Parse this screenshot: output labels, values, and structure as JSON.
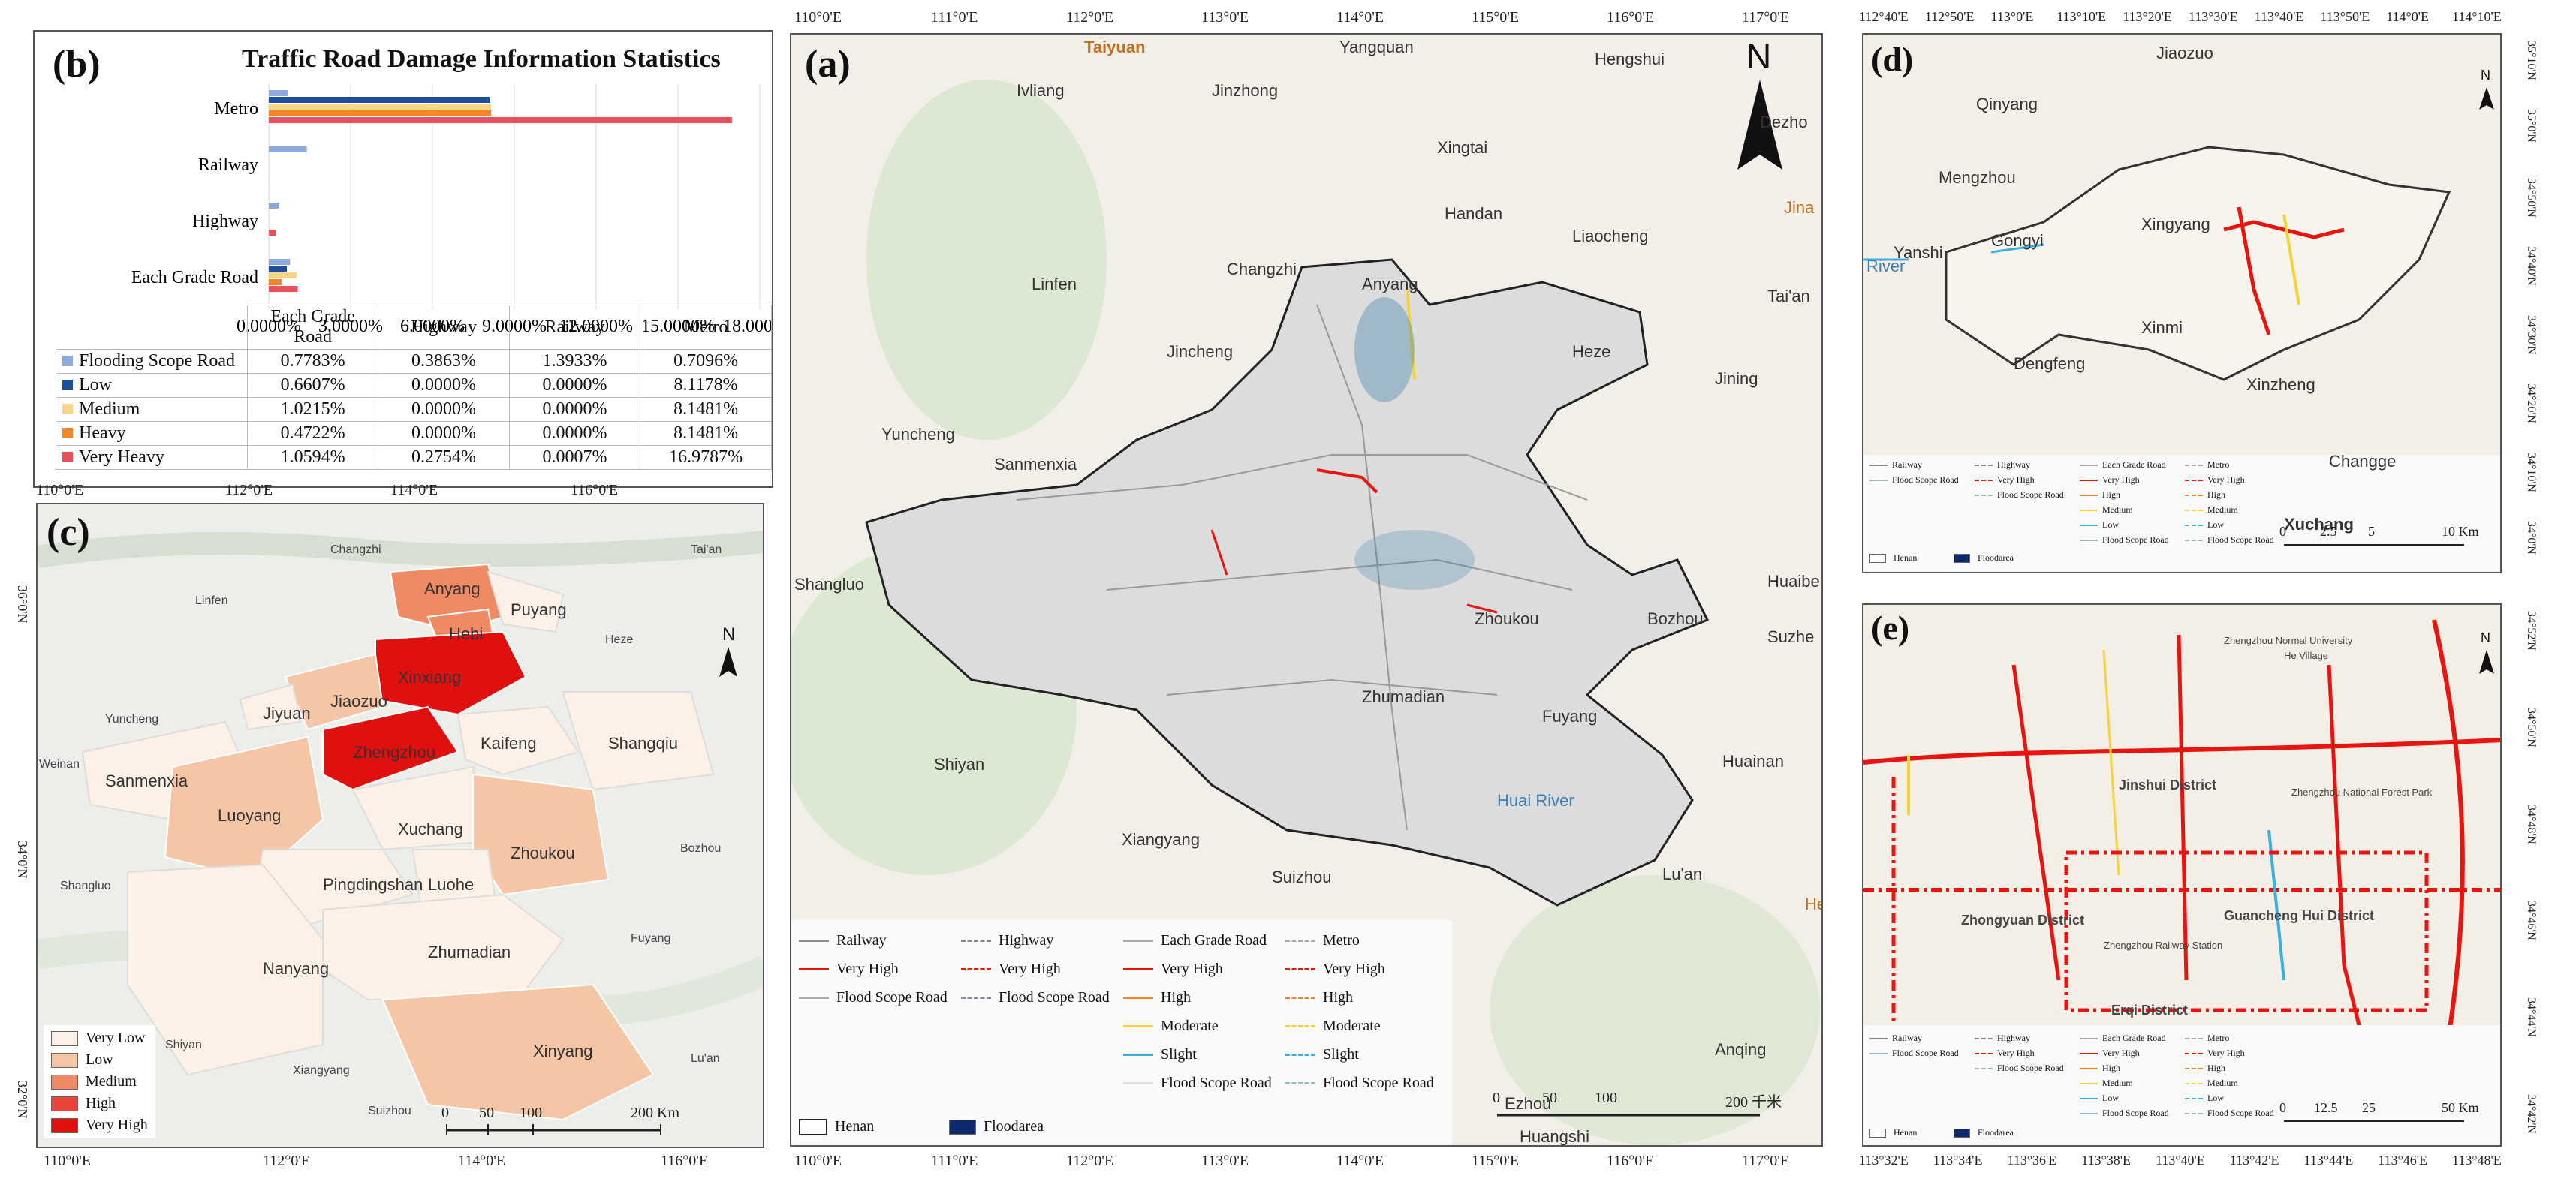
{
  "panel_b": {
    "letter": "(b)",
    "title": "Traffic Road Damage Information Statistics",
    "chart_data": {
      "type": "bar",
      "orientation": "horizontal",
      "categories": [
        "Metro",
        "Railway",
        "Highway",
        "Each Grade Road"
      ],
      "series": [
        {
          "name": "Flooding Scope Road",
          "color": "#8eaadb",
          "values": [
            0.7096,
            1.3933,
            0.3863,
            0.7783
          ]
        },
        {
          "name": "Low",
          "color": "#1f4e9a",
          "values": [
            8.1178,
            0.0,
            0.0,
            0.6607
          ]
        },
        {
          "name": "Medium",
          "color": "#f6d68a",
          "values": [
            8.1481,
            0.0,
            0.0,
            1.0215
          ]
        },
        {
          "name": "Heavy",
          "color": "#f0862a",
          "values": [
            8.1481,
            0.0,
            0.0,
            0.4722
          ]
        },
        {
          "name": "Very Heavy",
          "color": "#e8505b",
          "values": [
            16.9787,
            0.0007,
            0.2754,
            1.0594
          ]
        }
      ],
      "xticks": [
        "0.0000%",
        "3.0000%",
        "6.0000%",
        "9.0000%",
        "12.0000%",
        "15.0000%",
        "18.0000%"
      ],
      "xlim": [
        0,
        18
      ]
    },
    "table": {
      "headers": [
        "Each Grade Road",
        "Highway",
        "Railway",
        "Metro"
      ],
      "rows": [
        {
          "label": "Flooding Scope Road",
          "color": "#8eaadb",
          "cells": [
            "0.7783%",
            "0.3863%",
            "1.3933%",
            "0.7096%"
          ]
        },
        {
          "label": "Low",
          "color": "#1f4e9a",
          "cells": [
            "0.6607%",
            "0.0000%",
            "0.0000%",
            "8.1178%"
          ]
        },
        {
          "label": "Medium",
          "color": "#f6d68a",
          "cells": [
            "1.0215%",
            "0.0000%",
            "0.0000%",
            "8.1481%"
          ]
        },
        {
          "label": "Heavy",
          "color": "#f0862a",
          "cells": [
            "0.4722%",
            "0.0000%",
            "0.0000%",
            "8.1481%"
          ]
        },
        {
          "label": "Very Heavy",
          "color": "#e8505b",
          "cells": [
            "1.0594%",
            "0.2754%",
            "0.0007%",
            "16.9787%"
          ]
        }
      ]
    }
  },
  "panel_a": {
    "letter": "(a)",
    "north": "N",
    "lon_ticks": [
      "110°0'E",
      "111°0'E",
      "112°0'E",
      "113°0'E",
      "114°0'E",
      "115°0'E",
      "116°0'E",
      "117°0'E"
    ],
    "places": [
      "Taiyuan",
      "Yangquan",
      "Hengshui",
      "Ivliang",
      "Jinzhong",
      "Dezho",
      "Xingtai",
      "Jina",
      "Handan",
      "Changzhi",
      "Liaocheng",
      "Linfen",
      "Anyang",
      "Tai'an",
      "Jincheng",
      "Heze",
      "Jining",
      "Yuncheng",
      "Sanmenxia",
      "Shangluo",
      "Zhoukou",
      "Bozhou",
      "Huaibe",
      "Suzhe",
      "Zhumadian",
      "Fuyang",
      "Shiyan",
      "Huainan",
      "Huai River",
      "Xiangyang",
      "Suizhou",
      "Lu'an",
      "Ezhou",
      "Huangshi",
      "Anqing",
      "He"
    ],
    "legend": [
      {
        "label": "Railway"
      },
      {
        "label": "Highway"
      },
      {
        "label": "Each Grade Road"
      },
      {
        "label": "Metro"
      },
      {
        "label": "Very High"
      },
      {
        "label": "Very High"
      },
      {
        "label": "Very High"
      },
      {
        "label": "Very High"
      },
      {
        "label": "Flood Scope Road"
      },
      {
        "label": "Flood Scope Road"
      },
      {
        "label": "High"
      },
      {
        "label": "High"
      },
      {
        "label": "Moderate"
      },
      {
        "label": "Moderate"
      },
      {
        "label": "Slight"
      },
      {
        "label": "Slight"
      },
      {
        "label": "Flood Scope Road"
      },
      {
        "label": "Flood Scope Road"
      }
    ],
    "legend_box": {
      "henan": "Henan",
      "floodarea": "Floodarea"
    },
    "scale": {
      "ticks": [
        "0",
        "50",
        "100",
        "200 千米"
      ]
    }
  },
  "panel_c": {
    "letter": "(c)",
    "north": "N",
    "lon_ticks": [
      "110°0'E",
      "112°0'E",
      "114°0'E",
      "116°0'E"
    ],
    "lon_ticks_bottom": [
      "110°0'E",
      "112°0'E",
      "114°0'E",
      "116°0'E"
    ],
    "lat_ticks": [
      "36°0'N",
      "34°0'N",
      "32°0'N"
    ],
    "cities": [
      "Anyang",
      "Puyang",
      "Hebi",
      "Xinxiang",
      "Jiyuan",
      "Jiaozuo",
      "Zhengzhou",
      "Kaifeng",
      "Shangqiu",
      "Sanmenxia",
      "Luoyang",
      "Xuchang",
      "Zhoukou",
      "Pingdingshan",
      "Luohe",
      "Nanyang",
      "Zhumadian",
      "Xinyang"
    ],
    "context": [
      "Changzhi",
      "Linfen",
      "Heze",
      "Tai'an",
      "Yuncheng",
      "Weinan",
      "Shangluo",
      "Bozhou",
      "Fuyang",
      "Shiyan",
      "Xiangyang",
      "Suizhou",
      "Lu'an"
    ],
    "legend": [
      {
        "label": "Very Low",
        "color": "#fdf0e6"
      },
      {
        "label": "Low",
        "color": "#f5c6a5"
      },
      {
        "label": "Medium",
        "color": "#ef8a65"
      },
      {
        "label": "High",
        "color": "#e8453c"
      },
      {
        "label": "Very High",
        "color": "#e0100f"
      }
    ],
    "scale": {
      "ticks": [
        "0",
        "50",
        "100",
        "200 Km"
      ]
    }
  },
  "panel_d": {
    "letter": "(d)",
    "north": "N",
    "lon_ticks": [
      "112°40'E",
      "112°50'E",
      "113°0'E",
      "113°10'E",
      "113°20'E",
      "113°30'E",
      "113°40'E",
      "113°50'E",
      "114°0'E",
      "114°10'E"
    ],
    "lat_ticks": [
      "35°10'N",
      "35°0'N",
      "34°50'N",
      "34°40'N",
      "34°30'N",
      "34°20'N",
      "34°10'N",
      "34°0'N"
    ],
    "places": [
      "Jiaozuo",
      "Qinyang",
      "Mengzhou",
      "Yanshi",
      "Gongyi",
      "Xingyang",
      "River",
      "Xinmi",
      "Dengfeng",
      "Xinzheng",
      "Changge",
      "Xuchang"
    ],
    "legend_cols": [
      [
        "Railway",
        "Flood Scope Road"
      ],
      [
        "Highway",
        "Very High",
        "Flood Scope Road"
      ],
      [
        "Each Grade Road",
        "Very High",
        "High",
        "Medium",
        "Low",
        "Flood Scope Road"
      ],
      [
        "Metro",
        "Very High",
        "High",
        "Medium",
        "Low",
        "Flood Scope Road"
      ]
    ],
    "legend_box": {
      "henan": "Henan",
      "floodarea": "Floodarea"
    },
    "scale": {
      "ticks": [
        "0",
        "2.5",
        "5",
        "10 Km"
      ]
    }
  },
  "panel_e": {
    "letter": "(e)",
    "north": "N",
    "lon_ticks": [
      "113°32'E",
      "113°34'E",
      "113°36'E",
      "113°38'E",
      "113°40'E",
      "113°42'E",
      "113°44'E",
      "113°46'E",
      "113°48'E"
    ],
    "lat_ticks": [
      "34°52'N",
      "34°50'N",
      "34°48'N",
      "34°46'N",
      "34°44'N",
      "34°42'N"
    ],
    "places": [
      "Jinshui District",
      "Zhongyuan District",
      "Guancheng Hui District",
      "Erqi District",
      "Zhengzhou Railway Station",
      "Zhengzhou National Forest Park",
      "He Village",
      "Zhengzhou Normal University"
    ],
    "legend_cols": [
      [
        "Railway",
        "Flood Scope Road"
      ],
      [
        "Highway",
        "Very High",
        "Flood Scope Road"
      ],
      [
        "Each Grade Road",
        "Very High",
        "High",
        "Medium",
        "Low",
        "Flood Scope Road"
      ],
      [
        "Metro",
        "Very High",
        "High",
        "Medium",
        "Low",
        "Flood Scope Road"
      ]
    ],
    "legend_box": {
      "henan": "Henan",
      "floodarea": "Floodarea"
    },
    "scale": {
      "ticks": [
        "0",
        "12.5",
        "25",
        "50 Km"
      ]
    }
  }
}
